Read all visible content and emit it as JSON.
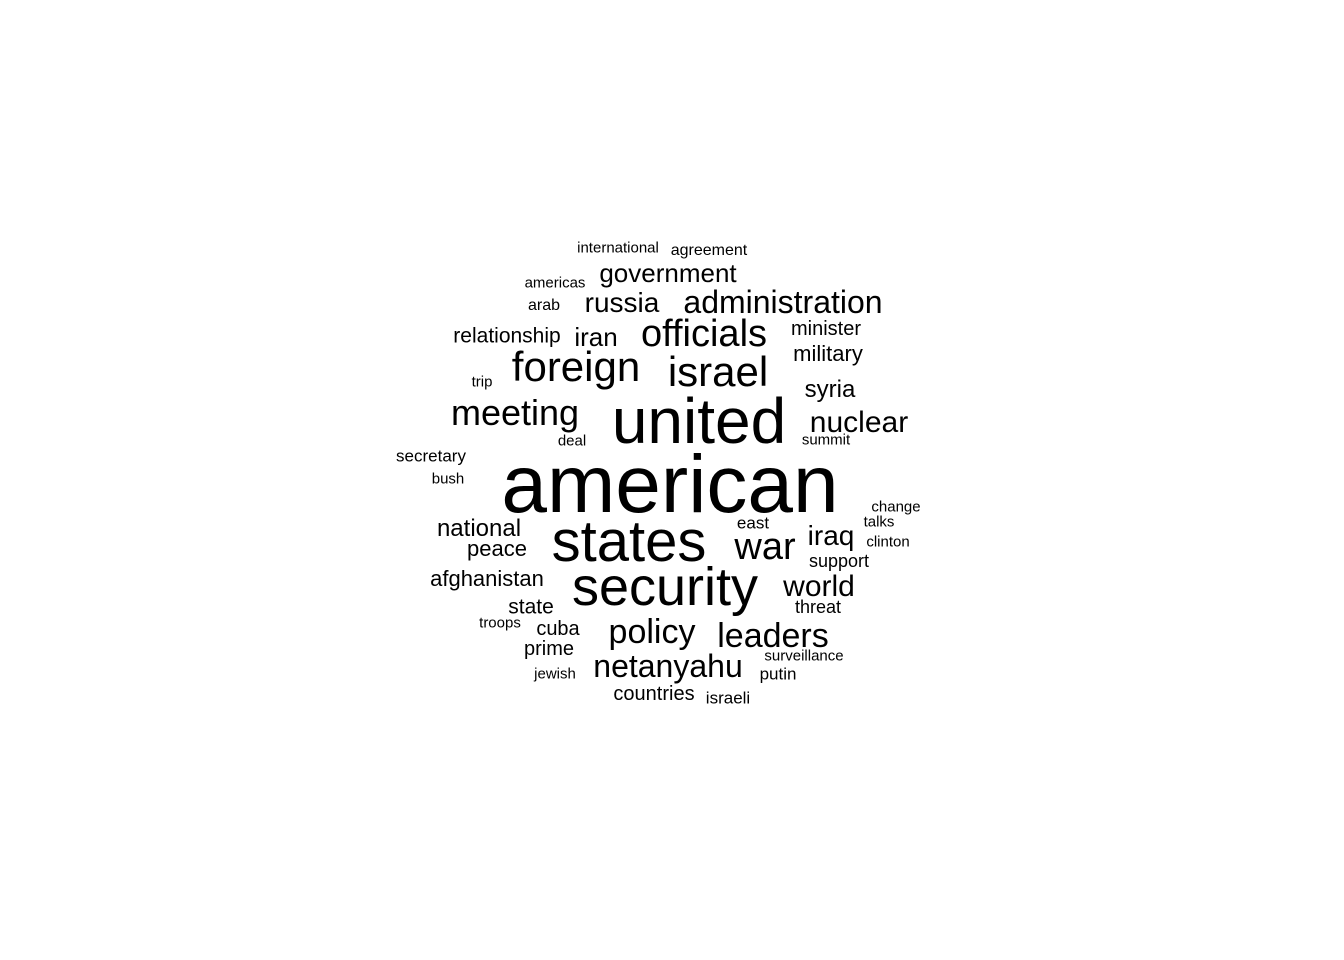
{
  "words": [
    {
      "text": "american"
    },
    {
      "text": "united"
    },
    {
      "text": "states"
    },
    {
      "text": "security"
    },
    {
      "text": "foreign"
    },
    {
      "text": "israel"
    },
    {
      "text": "officials"
    },
    {
      "text": "meeting"
    },
    {
      "text": "war"
    },
    {
      "text": "administration"
    },
    {
      "text": "leaders"
    },
    {
      "text": "policy"
    },
    {
      "text": "netanyahu"
    },
    {
      "text": "nuclear"
    },
    {
      "text": "world"
    },
    {
      "text": "government"
    },
    {
      "text": "russia"
    },
    {
      "text": "iraq"
    },
    {
      "text": "national"
    },
    {
      "text": "iran"
    },
    {
      "text": "syria"
    },
    {
      "text": "afghanistan"
    },
    {
      "text": "peace"
    },
    {
      "text": "military"
    },
    {
      "text": "relationship"
    },
    {
      "text": "state"
    },
    {
      "text": "cuba"
    },
    {
      "text": "prime"
    },
    {
      "text": "minister"
    },
    {
      "text": "countries"
    },
    {
      "text": "support"
    },
    {
      "text": "threat"
    },
    {
      "text": "east"
    },
    {
      "text": "secretary"
    },
    {
      "text": "israeli"
    },
    {
      "text": "putin"
    },
    {
      "text": "agreement"
    },
    {
      "text": "international"
    },
    {
      "text": "americas"
    },
    {
      "text": "arab"
    },
    {
      "text": "deal"
    },
    {
      "text": "summit"
    },
    {
      "text": "bush"
    },
    {
      "text": "change"
    },
    {
      "text": "talks"
    },
    {
      "text": "clinton"
    },
    {
      "text": "trip"
    },
    {
      "text": "troops"
    },
    {
      "text": "surveillance"
    },
    {
      "text": "jewish"
    }
  ]
}
